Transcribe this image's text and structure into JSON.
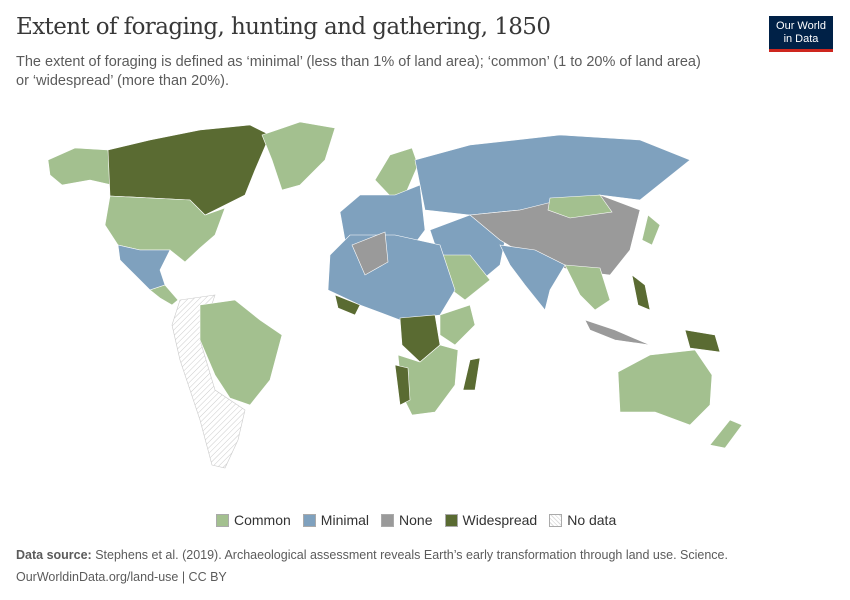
{
  "title": "Extent of foraging, hunting and gathering, 1850",
  "subtitle": "The extent of foraging is defined as ‘minimal’ (less than 1% of land area); ‘common’ (1 to 20% of land area) or ‘widespread’ (more than 20%).",
  "logo": {
    "line1": "Our World",
    "line2": "in Data"
  },
  "legend": [
    {
      "label": "Common",
      "color": "#a3c08f"
    },
    {
      "label": "Minimal",
      "color": "#7fa1be"
    },
    {
      "label": "None",
      "color": "#9a9a9a"
    },
    {
      "label": "Widespread",
      "color": "#5a6b32"
    },
    {
      "label": "No data",
      "color": "hatched"
    }
  ],
  "footer": {
    "source_label": "Data source:",
    "source_text": "Stephens et al. (2019). Archaeological assessment reveals Earth’s early transformation through land use. Science.",
    "url": "OurWorldinData.org/land-use | CC BY"
  }
}
